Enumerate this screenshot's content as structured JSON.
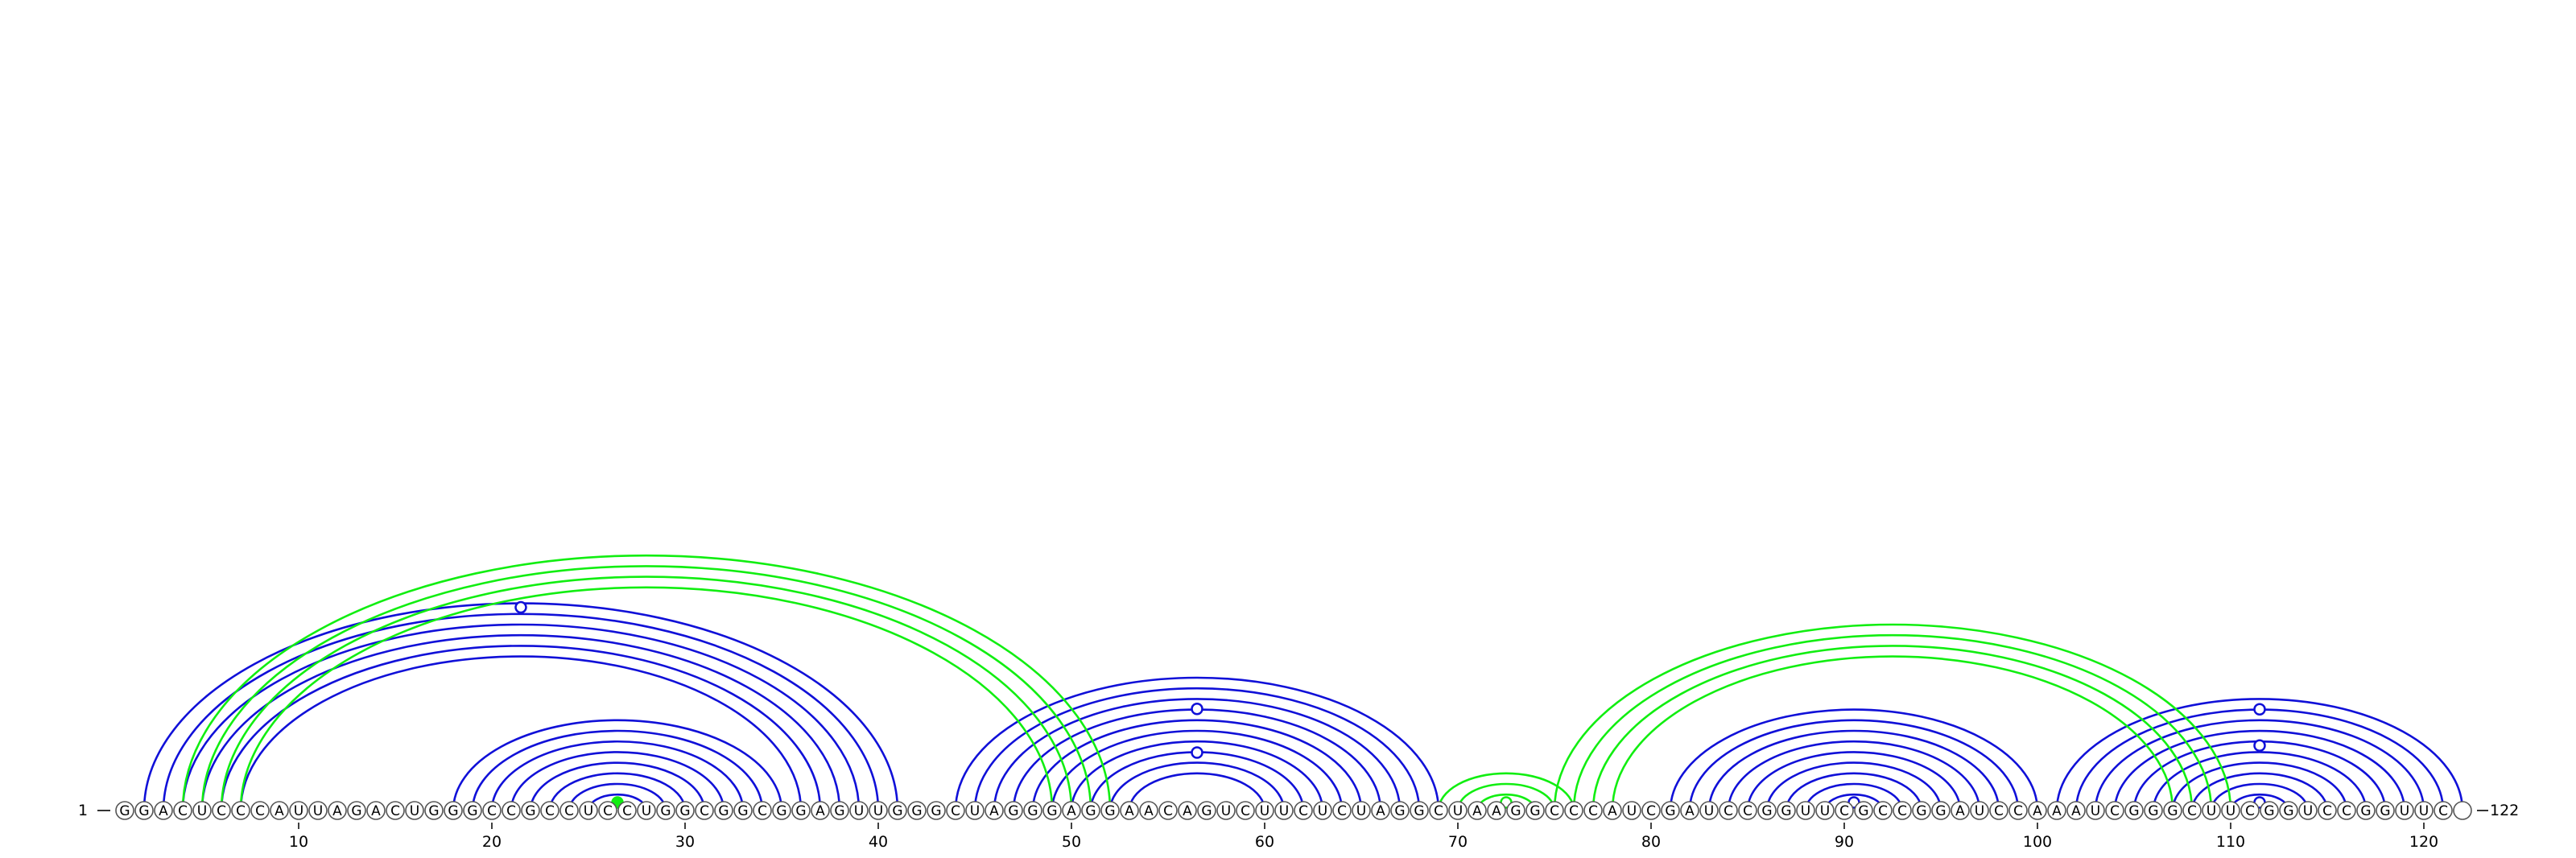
{
  "sequence": "GGACUCCCAUUAGACUGGGCCGCCUCCUGGCGGCGGAGUUGGGCUAGGGAGGAACAGUCUUCUCUAGGCUAAGGCCCAUCGAUCCGGUUCGCCGGAUCCAAAUCGGGCUUCGGUCCGGUUC",
  "start_label": "1",
  "end_label": "122",
  "tick_labels": [
    "10",
    "20",
    "30",
    "40",
    "50",
    "60",
    "70",
    "80",
    "90",
    "100",
    "110",
    "120"
  ],
  "colors": {
    "blue_arcs": "#1010d8",
    "green_arcs": "#11ee11"
  },
  "chart_data": {
    "type": "arc-diagram",
    "length": 122,
    "ticks": [
      10,
      20,
      30,
      40,
      50,
      60,
      70,
      80,
      90,
      100,
      110,
      120
    ],
    "blue_pairs": [
      [
        2,
        41
      ],
      [
        3,
        40
      ],
      [
        4,
        39
      ],
      [
        5,
        38
      ],
      [
        6,
        37
      ],
      [
        7,
        36
      ],
      [
        18,
        35
      ],
      [
        19,
        34
      ],
      [
        20,
        33
      ],
      [
        21,
        32
      ],
      [
        22,
        31
      ],
      [
        23,
        30
      ],
      [
        24,
        29
      ],
      [
        25,
        28
      ],
      [
        44,
        69
      ],
      [
        45,
        68
      ],
      [
        46,
        67
      ],
      [
        47,
        66
      ],
      [
        48,
        65
      ],
      [
        49,
        64
      ],
      [
        50,
        63
      ],
      [
        51,
        62
      ],
      [
        52,
        61
      ],
      [
        53,
        60
      ],
      [
        81,
        100
      ],
      [
        82,
        99
      ],
      [
        83,
        98
      ],
      [
        84,
        97
      ],
      [
        85,
        96
      ],
      [
        86,
        95
      ],
      [
        87,
        94
      ],
      [
        88,
        93
      ],
      [
        89,
        92
      ],
      [
        101,
        122
      ],
      [
        102,
        121
      ],
      [
        103,
        120
      ],
      [
        104,
        119
      ],
      [
        105,
        118
      ],
      [
        106,
        117
      ],
      [
        107,
        116
      ],
      [
        108,
        115
      ],
      [
        109,
        114
      ],
      [
        110,
        113
      ]
    ],
    "green_pairs": [
      [
        4,
        52
      ],
      [
        5,
        51
      ],
      [
        6,
        50
      ],
      [
        7,
        49
      ],
      [
        26,
        27
      ],
      [
        71,
        74
      ],
      [
        70,
        75
      ],
      [
        69,
        76
      ],
      [
        75,
        110
      ],
      [
        76,
        109
      ],
      [
        77,
        108
      ],
      [
        78,
        107
      ]
    ],
    "marker_positions": [
      {
        "x": 21.5,
        "y_ratio": 0.98,
        "color": "blue",
        "filled": false
      },
      {
        "x": 26.5,
        "y_ratio": 0.0,
        "color": "green",
        "filled": true
      },
      {
        "x": 56.5,
        "y_ratio": 0.75,
        "color": "blue",
        "filled": false
      },
      {
        "x": 56.5,
        "y_ratio": 0.4,
        "color": "blue",
        "filled": false
      },
      {
        "x": 72.5,
        "y_ratio": 0.0,
        "color": "green",
        "filled": false
      },
      {
        "x": 90.5,
        "y_ratio": 0.0,
        "color": "blue",
        "filled": false
      },
      {
        "x": 111.5,
        "y_ratio": 0.0,
        "color": "blue",
        "filled": false
      },
      {
        "x": 111.5,
        "y_ratio": 0.55,
        "color": "blue",
        "filled": false
      },
      {
        "x": 111.5,
        "y_ratio": 0.9,
        "color": "blue",
        "filled": false
      }
    ]
  }
}
